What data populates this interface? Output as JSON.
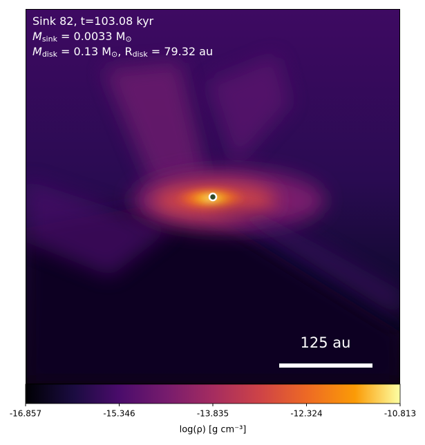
{
  "chart_data": {
    "type": "image",
    "info_lines": [
      [
        {
          "text": "Sink 82, t=103.08 kyr"
        }
      ],
      [
        {
          "text": "M"
        },
        {
          "sub": "sink"
        },
        {
          "text": " = 0.0033 M"
        },
        {
          "sub": "⊙"
        }
      ],
      [
        {
          "text": "M"
        },
        {
          "sub": "disk"
        },
        {
          "text": " = 0.13 M"
        },
        {
          "sub": "⊙"
        },
        {
          "text": ", R"
        },
        {
          "sub": "disk"
        },
        {
          "text": " = 79.32 au"
        }
      ]
    ],
    "scale_bar_label": "125 au",
    "colorbar": {
      "label": "log(ρ) [g cm⁻³]",
      "colormap": "inferno",
      "clim": [
        -16.857,
        -10.813
      ],
      "ticks": [
        -16.857,
        -15.346,
        -13.835,
        -12.324,
        -10.813
      ]
    }
  }
}
